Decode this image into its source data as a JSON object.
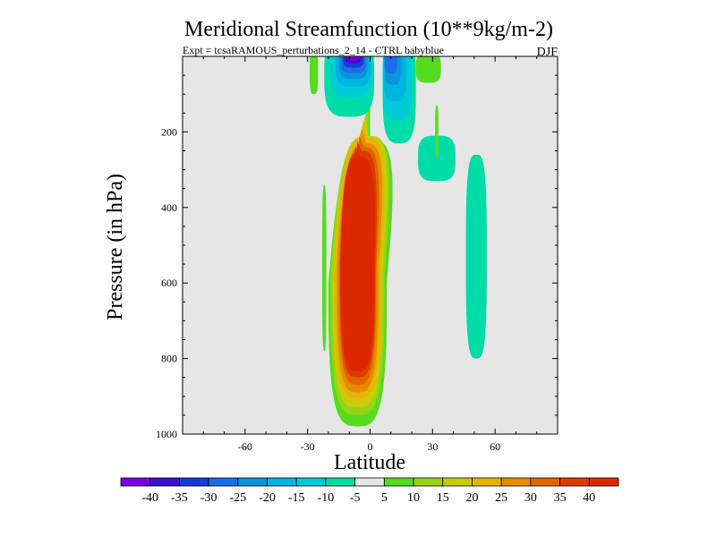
{
  "chart_data": {
    "type": "contour",
    "title": "Meridional Streamfunction (10**9kg/m-2)",
    "subtitle_left": "Expt = tcsaRAMOUS_perturbations_2_14 - CTRL babyblue",
    "subtitle_right": "DJF",
    "xlabel": "Latitude",
    "ylabel": "Pressure (in hPa)",
    "xlim": [
      -90,
      90
    ],
    "ylim": [
      1000,
      0
    ],
    "xticks": [
      {
        "value": -60,
        "label": "-60"
      },
      {
        "value": -30,
        "label": "-30"
      },
      {
        "value": 0,
        "label": "0"
      },
      {
        "value": 30,
        "label": "30"
      },
      {
        "value": 60,
        "label": "60"
      }
    ],
    "yticks": [
      {
        "value": 200,
        "label": "200"
      },
      {
        "value": 400,
        "label": "400"
      },
      {
        "value": 600,
        "label": "600"
      },
      {
        "value": 800,
        "label": "800"
      },
      {
        "value": 1000,
        "label": "1000"
      }
    ],
    "background_color": "#e6e6e6",
    "colorbar": {
      "levels": [
        "-40",
        "-35",
        "-30",
        "-25",
        "-20",
        "-15",
        "-10",
        "-5",
        "5",
        "10",
        "15",
        "20",
        "25",
        "30",
        "35",
        "40"
      ],
      "colors": [
        "#7a00dc",
        "#3a10c8",
        "#1a3ad6",
        "#1a6ee8",
        "#0c94d8",
        "#00b4e0",
        "#00ccd8",
        "#00dca8",
        "#e6e6e6",
        "#55dc1e",
        "#96d414",
        "#c8cc0a",
        "#e6b400",
        "#e68c00",
        "#e06400",
        "#dc3c00",
        "#dc2800"
      ]
    },
    "contours": [
      {
        "name": "pos-overturning-cell",
        "levels": [
          {
            "value": 5,
            "color": "#55dc1e",
            "center": [
              -6,
              600
            ],
            "halfwidth": [
              14,
              380
            ],
            "peak": [
              8,
              100
            ],
            "tilt": 6
          },
          {
            "value": 10,
            "color": "#96d414",
            "center": [
              -6,
              580
            ],
            "halfwidth": [
              13,
              370
            ],
            "peak": [
              7,
              130
            ],
            "tilt": 5
          },
          {
            "value": 15,
            "color": "#c8cc0a",
            "center": [
              -6,
              570
            ],
            "halfwidth": [
              12,
              360
            ],
            "peak": [
              6,
              150
            ],
            "tilt": 5
          },
          {
            "value": 20,
            "color": "#e6b400",
            "center": [
              -6,
              560
            ],
            "halfwidth": [
              11,
              345
            ],
            "peak": [
              5,
              170
            ],
            "tilt": 4
          },
          {
            "value": 25,
            "color": "#e68c00",
            "center": [
              -6,
              560
            ],
            "halfwidth": [
              10,
              330
            ],
            "peak": [
              4,
              190
            ],
            "tilt": 4
          },
          {
            "value": 30,
            "color": "#e06400",
            "center": [
              -6,
              555
            ],
            "halfwidth": [
              9,
              315
            ],
            "peak": [
              3,
              210
            ],
            "tilt": 3
          },
          {
            "value": 35,
            "color": "#dc3c00",
            "center": [
              -6,
              550
            ],
            "halfwidth": [
              8.5,
              300
            ],
            "peak": [
              2,
              225
            ],
            "tilt": 2
          },
          {
            "value": 40,
            "color": "#dc2800",
            "center": [
              -6,
              550
            ],
            "halfwidth": [
              8,
              285
            ],
            "peak": [
              1,
              240
            ],
            "tilt": 1
          }
        ]
      },
      {
        "name": "neg-cell-left",
        "levels": [
          {
            "value": -5,
            "color": "#00dca8",
            "center": [
              -10,
              50
            ],
            "halfwidth": [
              12,
              110
            ]
          },
          {
            "value": -10,
            "color": "#00ccd8",
            "center": [
              -9,
              30
            ],
            "halfwidth": [
              10,
              80
            ]
          },
          {
            "value": -15,
            "color": "#00b4e0",
            "center": [
              -8,
              20
            ],
            "halfwidth": [
              8.5,
              60
            ]
          },
          {
            "value": -20,
            "color": "#0c94d8",
            "center": [
              -8,
              15
            ],
            "halfwidth": [
              7,
              45
            ]
          },
          {
            "value": -25,
            "color": "#1a6ee8",
            "center": [
              -8,
              10
            ],
            "halfwidth": [
              6,
              35
            ]
          },
          {
            "value": -30,
            "color": "#1a3ad6",
            "center": [
              -8,
              5
            ],
            "halfwidth": [
              5,
              25
            ]
          },
          {
            "value": -35,
            "color": "#3a10c8",
            "center": [
              -8,
              0
            ],
            "halfwidth": [
              4,
              18
            ]
          },
          {
            "value": -40,
            "color": "#7a00dc",
            "center": [
              -8,
              0
            ],
            "halfwidth": [
              3,
              12
            ]
          }
        ]
      },
      {
        "name": "neg-cell-right",
        "levels": [
          {
            "value": -5,
            "color": "#00dca8",
            "center": [
              14,
              80
            ],
            "halfwidth": [
              8,
              150
            ]
          },
          {
            "value": -10,
            "color": "#00ccd8",
            "center": [
              13,
              60
            ],
            "halfwidth": [
              7,
              110
            ]
          },
          {
            "value": -15,
            "color": "#00b4e0",
            "center": [
              12,
              40
            ],
            "halfwidth": [
              5.5,
              80
            ]
          },
          {
            "value": -20,
            "color": "#0c94d8",
            "center": [
              11,
              20
            ],
            "halfwidth": [
              4,
              55
            ]
          },
          {
            "value": -25,
            "color": "#1a6ee8",
            "center": [
              10,
              10
            ],
            "halfwidth": [
              3,
              35
            ]
          }
        ]
      },
      {
        "name": "neg-cell-far-right",
        "levels": [
          {
            "value": -5,
            "color": "#00dca8",
            "center": [
              51,
              530
            ],
            "halfwidth": [
              5,
              270
            ]
          }
        ]
      },
      {
        "name": "neg-strip-upper-right",
        "levels": [
          {
            "value": -5,
            "color": "#00dca8",
            "center": [
              32,
              270
            ],
            "halfwidth": [
              9,
              60
            ]
          }
        ]
      },
      {
        "name": "pos-strip-left",
        "levels": [
          {
            "value": 5,
            "color": "#55dc1e",
            "center": [
              -27,
              40
            ],
            "halfwidth": [
              2,
              60
            ]
          },
          {
            "value": 5,
            "color": "#55dc1e",
            "center": [
              -22,
              560
            ],
            "halfwidth": [
              1,
              220
            ]
          }
        ]
      },
      {
        "name": "pos-strip-right",
        "levels": [
          {
            "value": 5,
            "color": "#55dc1e",
            "center": [
              28,
              30
            ],
            "halfwidth": [
              6,
              40
            ]
          },
          {
            "value": 5,
            "color": "#55dc1e",
            "center": [
              32,
              200
            ],
            "halfwidth": [
              0.8,
              70
            ]
          }
        ]
      }
    ]
  }
}
